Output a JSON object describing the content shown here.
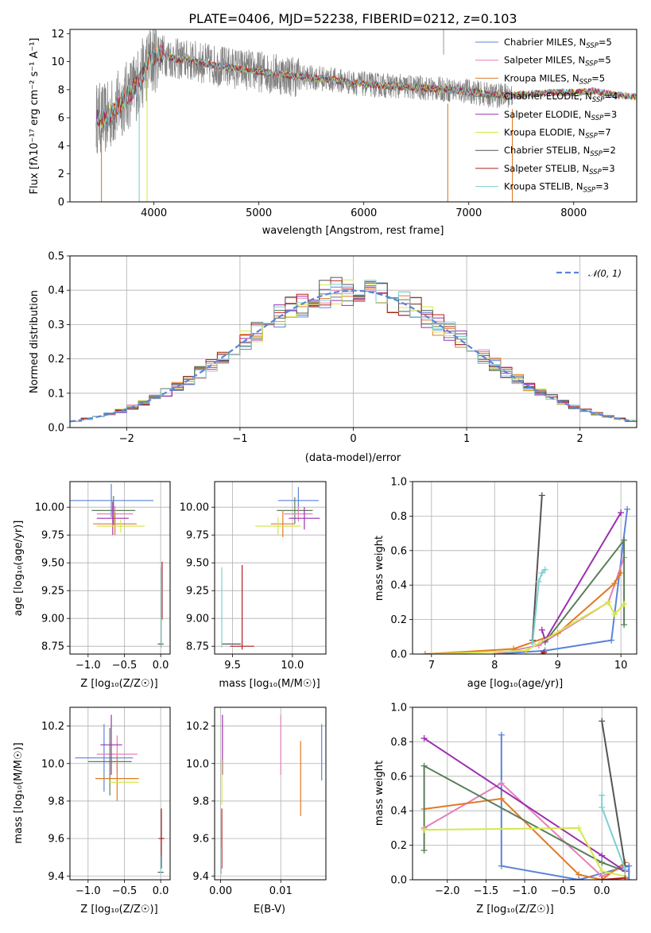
{
  "colors": {
    "chabrier_miles": "#5b84d8",
    "salpeter_miles": "#e67fb8",
    "kroupa_miles": "#e07a24",
    "chabrier_elodie": "#5a7f5a",
    "salpeter_elodie": "#9c2fb0",
    "kroupa_elodie": "#d4e84a",
    "chabrier_stelib": "#555555",
    "salpeter_stelib": "#b51f1f",
    "kroupa_stelib": "#7fcfcf",
    "spectrum": "#808080",
    "normal_curve": "#5b84d8"
  },
  "chart_data": [
    {
      "id": "spectrum",
      "type": "line",
      "title": "PLATE=0406, MJD=52238, FIBERID=0212, z=0.103",
      "xlabel": "wavelength [Angstrom, rest frame]",
      "ylabel": "Flux [fλ10⁻¹⁷ erg cm⁻² s⁻¹ A⁻¹]",
      "xlim": [
        3200,
        8600
      ],
      "ylim": [
        0,
        12.3
      ],
      "xticks": [
        "4000",
        "5000",
        "6000",
        "7000",
        "8000"
      ],
      "xtick_values": [
        4000,
        5000,
        6000,
        7000,
        8000
      ],
      "yticks": [
        "0",
        "2",
        "4",
        "6",
        "8",
        "10",
        "12"
      ],
      "ytick_values": [
        0,
        2,
        4,
        6,
        8,
        10,
        12
      ],
      "legend_position": "top-right",
      "legend": [
        {
          "key": "chabrier_miles",
          "label": "Chabrier MILES, N",
          "sub": "SSP",
          "suffix": "=5"
        },
        {
          "key": "salpeter_miles",
          "label": "Salpeter MILES, N",
          "sub": "SSP",
          "suffix": "=5"
        },
        {
          "key": "kroupa_miles",
          "label": "Kroupa MILES, N",
          "sub": "SSP",
          "suffix": "=5"
        },
        {
          "key": "chabrier_elodie",
          "label": "Chabrier ELODIE, N",
          "sub": "SSP",
          "suffix": "=4"
        },
        {
          "key": "salpeter_elodie",
          "label": "Salpeter ELODIE, N",
          "sub": "SSP",
          "suffix": "=3"
        },
        {
          "key": "kroupa_elodie",
          "label": "Kroupa ELODIE, N",
          "sub": "SSP",
          "suffix": "=7"
        },
        {
          "key": "chabrier_stelib",
          "label": "Chabrier STELIB, N",
          "sub": "SSP",
          "suffix": "=2"
        },
        {
          "key": "salpeter_stelib",
          "label": "Salpeter STELIB, N",
          "sub": "SSP",
          "suffix": "=3"
        },
        {
          "key": "kroupa_stelib",
          "label": "Kroupa STELIB, N",
          "sub": "SSP",
          "suffix": "=3"
        }
      ],
      "continuum": {
        "x": [
          3450,
          3550,
          3650,
          3750,
          3850,
          3950,
          4050,
          4200,
          4400,
          4600,
          4800,
          5000,
          5200,
          5400,
          5600,
          5800,
          6000,
          6200,
          6400,
          6600,
          6800,
          7000,
          7200,
          7400,
          7600,
          7800,
          8000,
          8200,
          8400,
          8600
        ],
        "y": [
          6.0,
          5.9,
          6.8,
          7.6,
          8.5,
          10.0,
          10.6,
          10.2,
          10.0,
          9.7,
          9.5,
          9.3,
          9.1,
          8.9,
          8.8,
          8.6,
          8.4,
          8.3,
          8.2,
          8.1,
          8.0,
          7.9,
          7.6,
          7.6,
          7.7,
          7.8,
          7.8,
          7.9,
          7.6,
          7.5
        ]
      },
      "dips": [
        {
          "series": "kroupa_miles",
          "x": 3500,
          "y": 0
        },
        {
          "series": "kroupa_stelib",
          "x": 3860,
          "y": 0
        },
        {
          "series": "kroupa_elodie",
          "x": 3935,
          "y": 0
        },
        {
          "series": "kroupa_miles",
          "x": 6800,
          "y": 0
        },
        {
          "series": "kroupa_miles",
          "x": 7415,
          "y": 0
        }
      ]
    },
    {
      "id": "residuals",
      "type": "line",
      "xlabel": "(data-model)/error",
      "ylabel": "Normed distribution",
      "xlim": [
        -2.5,
        2.5
      ],
      "ylim": [
        0,
        0.5
      ],
      "xticks": [
        "−2",
        "−1",
        "0",
        "1",
        "2"
      ],
      "xtick_values": [
        -2,
        -1,
        0,
        1,
        2
      ],
      "yticks": [
        "0.0",
        "0.1",
        "0.2",
        "0.3",
        "0.4",
        "0.5"
      ],
      "ytick_values": [
        0,
        0.1,
        0.2,
        0.3,
        0.4,
        0.5
      ],
      "legend_position": "top-right",
      "legend_label": "𝒩(0, 1)",
      "bin_width": 0.1
    },
    {
      "id": "age_vs_Z",
      "type": "scatter",
      "xlabel": "Z [log₁₀(Z/Z☉)]",
      "ylabel": "age  [log₁₀(age/yr)]",
      "xlim": [
        -1.25,
        0.13
      ],
      "ylim": [
        8.68,
        10.23
      ],
      "xticks": [
        "−1.0",
        "−0.5",
        "0.0"
      ],
      "xtick_values": [
        -1.0,
        -0.5,
        0.0
      ],
      "yticks": [
        "8.75",
        "9.00",
        "9.25",
        "9.50",
        "9.75",
        "10.00"
      ],
      "ytick_values": [
        8.75,
        9.0,
        9.25,
        9.5,
        9.75,
        10.0
      ],
      "points": [
        {
          "s": "chabrier_miles",
          "x": -0.68,
          "y": 10.06,
          "xe": 0.58,
          "ye": 0.15
        },
        {
          "s": "chabrier_elodie",
          "x": -0.65,
          "y": 9.97,
          "xe": 0.3,
          "ye": 0.13
        },
        {
          "s": "salpeter_miles",
          "x": -0.63,
          "y": 9.94,
          "xe": 0.25,
          "ye": 0.07
        },
        {
          "s": "salpeter_elodie",
          "x": -0.66,
          "y": 9.9,
          "xe": 0.22,
          "ye": 0.15
        },
        {
          "s": "kroupa_miles",
          "x": -0.63,
          "y": 9.85,
          "xe": 0.3,
          "ye": 0.1
        },
        {
          "s": "kroupa_elodie",
          "x": -0.55,
          "y": 9.83,
          "xe": 0.33,
          "ye": 0.06
        },
        {
          "s": "salpeter_stelib",
          "x": 0.02,
          "y": 9.25,
          "xe": 0.0,
          "ye": 0.26
        },
        {
          "s": "chabrier_stelib",
          "x": 0.0,
          "y": 8.77,
          "xe": 0.04,
          "ye": 0.0
        },
        {
          "s": "kroupa_stelib",
          "x": 0.01,
          "y": 9.1,
          "xe": 0.0,
          "ye": 0.36
        }
      ]
    },
    {
      "id": "age_vs_mass",
      "type": "scatter",
      "xlabel": "mass [log₁₀(M/M☉)]",
      "ylabel": "",
      "xlim": [
        9.35,
        10.28
      ],
      "ylim": [
        8.68,
        10.23
      ],
      "xticks": [
        "9.5",
        "10.0"
      ],
      "xtick_values": [
        9.5,
        10.0
      ],
      "yticks": [
        "8.75",
        "9.00",
        "9.25",
        "9.50",
        "9.75",
        "10.00"
      ],
      "ytick_values": [
        8.75,
        9.0,
        9.25,
        9.5,
        9.75,
        10.0
      ],
      "points": [
        {
          "s": "chabrier_miles",
          "x": 10.05,
          "y": 10.06,
          "xe": 0.17,
          "ye": 0.12
        },
        {
          "s": "chabrier_elodie",
          "x": 10.02,
          "y": 9.97,
          "xe": 0.15,
          "ye": 0.12
        },
        {
          "s": "salpeter_miles",
          "x": 10.05,
          "y": 9.94,
          "xe": 0.12,
          "ye": 0.07
        },
        {
          "s": "salpeter_elodie",
          "x": 10.1,
          "y": 9.9,
          "xe": 0.13,
          "ye": 0.1
        },
        {
          "s": "kroupa_miles",
          "x": 9.92,
          "y": 9.85,
          "xe": 0.1,
          "ye": 0.12
        },
        {
          "s": "kroupa_elodie",
          "x": 9.88,
          "y": 9.83,
          "xe": 0.19,
          "ye": 0.08
        },
        {
          "s": "chabrier_stelib",
          "x": 9.49,
          "y": 8.77,
          "xe": 0.08,
          "ye": 0.0
        },
        {
          "s": "salpeter_stelib",
          "x": 9.58,
          "y": 8.75,
          "xe": 0.1,
          "ye": 0.0
        },
        {
          "s": "kroupa_stelib",
          "x": 9.41,
          "y": 9.1,
          "xe": 0.0,
          "ye": 0.36
        },
        {
          "s": "salpeter_stelib",
          "x": 9.58,
          "y": 9.1,
          "xe": 0.0,
          "ye": 0.38
        }
      ]
    },
    {
      "id": "mass_weight_vs_age",
      "type": "line",
      "xlabel": "age  [log₁₀(age/yr)]",
      "ylabel": "mass weight",
      "xlim": [
        6.7,
        10.25
      ],
      "ylim": [
        0,
        1.0
      ],
      "xticks": [
        "7",
        "8",
        "9",
        "10"
      ],
      "xtick_values": [
        7,
        8,
        9,
        10
      ],
      "yticks": [
        "0.0",
        "0.2",
        "0.4",
        "0.6",
        "0.8",
        "1.0"
      ],
      "ytick_values": [
        0,
        0.2,
        0.4,
        0.6,
        0.8,
        1.0
      ],
      "series": [
        {
          "s": "chabrier_miles",
          "x": [
            8.0,
            8.8,
            9.85,
            10.1
          ],
          "y": [
            0.0,
            0.02,
            0.08,
            0.84
          ]
        },
        {
          "s": "salpeter_miles",
          "x": [
            8.0,
            8.7,
            9.8,
            10.05
          ],
          "y": [
            0.0,
            0.05,
            0.3,
            0.56
          ]
        },
        {
          "s": "kroupa_miles",
          "x": [
            6.9,
            8.3,
            9.0,
            9.9,
            10.0
          ],
          "y": [
            0.0,
            0.03,
            0.12,
            0.41,
            0.47
          ]
        },
        {
          "s": "chabrier_elodie",
          "x": [
            8.8,
            10.05,
            10.05
          ],
          "y": [
            0.07,
            0.66,
            0.17
          ]
        },
        {
          "s": "salpeter_elodie",
          "x": [
            8.75,
            8.8,
            10.0
          ],
          "y": [
            0.14,
            0.08,
            0.82
          ]
        },
        {
          "s": "kroupa_elodie",
          "x": [
            7.0,
            8.5,
            9.8,
            9.9,
            10.05
          ],
          "y": [
            0.0,
            0.02,
            0.3,
            0.23,
            0.29
          ]
        },
        {
          "s": "chabrier_stelib",
          "x": [
            8.6,
            8.75
          ],
          "y": [
            0.08,
            0.92
          ]
        },
        {
          "s": "salpeter_stelib",
          "x": [
            8.75,
            8.78
          ],
          "y": [
            0.0,
            0.01
          ]
        },
        {
          "s": "kroupa_stelib",
          "x": [
            8.6,
            8.7,
            8.75,
            8.8
          ],
          "y": [
            0.06,
            0.42,
            0.47,
            0.49
          ]
        }
      ]
    },
    {
      "id": "mass_vs_Z",
      "type": "scatter",
      "xlabel": "Z [log₁₀(Z/Z☉)]",
      "ylabel": "mass [log₁₀(M/M☉)]",
      "xlim": [
        -1.25,
        0.13
      ],
      "ylim": [
        9.38,
        10.3
      ],
      "xticks": [
        "−1.0",
        "−0.5",
        "0.0"
      ],
      "xtick_values": [
        -1.0,
        -0.5,
        0.0
      ],
      "yticks": [
        "9.4",
        "9.6",
        "9.8",
        "10.0",
        "10.2"
      ],
      "ytick_values": [
        9.4,
        9.6,
        9.8,
        10.0,
        10.2
      ],
      "points": [
        {
          "s": "chabrier_miles",
          "x": -0.78,
          "y": 10.03,
          "xe": 0.4,
          "ye": 0.18
        },
        {
          "s": "salpeter_miles",
          "x": -0.6,
          "y": 10.05,
          "xe": 0.28,
          "ye": 0.1
        },
        {
          "s": "salpeter_elodie",
          "x": -0.68,
          "y": 10.1,
          "xe": 0.15,
          "ye": 0.16
        },
        {
          "s": "chabrier_elodie",
          "x": -0.7,
          "y": 10.01,
          "xe": 0.3,
          "ye": 0.18
        },
        {
          "s": "kroupa_miles",
          "x": -0.6,
          "y": 9.92,
          "xe": 0.3,
          "ye": 0.12
        },
        {
          "s": "kroupa_elodie",
          "x": -0.5,
          "y": 9.9,
          "xe": 0.2,
          "ye": 0.0
        },
        {
          "s": "salpeter_stelib",
          "x": 0.01,
          "y": 9.6,
          "xe": 0.04,
          "ye": 0.16
        },
        {
          "s": "chabrier_stelib",
          "x": 0.0,
          "y": 9.42,
          "xe": 0.04,
          "ye": 0.0
        },
        {
          "s": "kroupa_stelib",
          "x": 0.0,
          "y": 9.46,
          "xe": 0.0,
          "ye": 0.05
        }
      ]
    },
    {
      "id": "mass_vs_ebv",
      "type": "scatter",
      "xlabel": "E(B-V)",
      "ylabel": "",
      "xlim": [
        -0.001,
        0.0175
      ],
      "ylim": [
        9.38,
        10.3
      ],
      "xticks": [
        "0.00",
        "0.01"
      ],
      "xtick_values": [
        0.0,
        0.01
      ],
      "yticks": [
        "9.4",
        "9.6",
        "9.8",
        "10.0",
        "10.2"
      ],
      "ytick_values": [
        9.4,
        9.6,
        9.8,
        10.0,
        10.2
      ],
      "points": [
        {
          "s": "salpeter_elodie",
          "x": 0.0003,
          "y": 10.1,
          "xe": 0.0,
          "ye": 0.16
        },
        {
          "s": "kroupa_elodie",
          "x": 0.0002,
          "y": 9.9,
          "xe": 0.0,
          "ye": 0.12
        },
        {
          "s": "salpeter_stelib",
          "x": 0.0002,
          "y": 9.6,
          "xe": 0.0,
          "ye": 0.16
        },
        {
          "s": "kroupa_stelib",
          "x": 0.0001,
          "y": 9.48,
          "xe": 0.0,
          "ye": 0.07
        },
        {
          "s": "salpeter_miles",
          "x": 0.01,
          "y": 10.1,
          "xe": 0.0,
          "ye": 0.16
        },
        {
          "s": "kroupa_miles",
          "x": 0.0133,
          "y": 9.92,
          "xe": 0.0,
          "ye": 0.2
        },
        {
          "s": "chabrier_miles",
          "x": 0.0168,
          "y": 10.06,
          "xe": 0.0,
          "ye": 0.15
        }
      ]
    },
    {
      "id": "mass_weight_vs_Z",
      "type": "line",
      "xlabel": "Z [log₁₀(Z/Z☉)]",
      "ylabel": "mass weight",
      "xlim": [
        -2.45,
        0.45
      ],
      "ylim": [
        0,
        1.0
      ],
      "xticks": [
        "−2.0",
        "−1.5",
        "−1.0",
        "−0.5",
        "0.0"
      ],
      "xtick_values": [
        -2.0,
        -1.5,
        -1.0,
        -0.5,
        0.0
      ],
      "yticks": [
        "0.0",
        "0.2",
        "0.4",
        "0.6",
        "0.8",
        "1.0"
      ],
      "ytick_values": [
        0,
        0.2,
        0.4,
        0.6,
        0.8,
        1.0
      ],
      "series": [
        {
          "s": "chabrier_miles",
          "x": [
            -1.3,
            -1.3,
            -0.3,
            0.35,
            0.35
          ],
          "y": [
            0.84,
            0.08,
            0.0,
            0.08,
            0.0
          ]
        },
        {
          "s": "salpeter_miles",
          "x": [
            -2.3,
            -1.3,
            0.0,
            0.3
          ],
          "y": [
            0.3,
            0.56,
            0.02,
            0.08
          ]
        },
        {
          "s": "kroupa_miles",
          "x": [
            -2.3,
            -1.3,
            -0.3,
            0.0,
            0.3
          ],
          "y": [
            0.41,
            0.47,
            0.03,
            0.0,
            0.1
          ]
        },
        {
          "s": "chabrier_elodie",
          "x": [
            -2.3,
            -2.3,
            0.0,
            0.3
          ],
          "y": [
            0.17,
            0.66,
            0.1,
            0.05
          ]
        },
        {
          "s": "salpeter_elodie",
          "x": [
            -2.3,
            0.0,
            0.3
          ],
          "y": [
            0.82,
            0.14,
            0.05
          ]
        },
        {
          "s": "kroupa_elodie",
          "x": [
            -2.3,
            -0.3,
            0.0,
            0.3
          ],
          "y": [
            0.29,
            0.3,
            0.05,
            0.02
          ]
        },
        {
          "s": "chabrier_stelib",
          "x": [
            0.0,
            0.3
          ],
          "y": [
            0.92,
            0.08
          ]
        },
        {
          "s": "salpeter_stelib",
          "x": [
            0.0,
            0.3
          ],
          "y": [
            0.0,
            0.01
          ]
        },
        {
          "s": "kroupa_stelib",
          "x": [
            0.0,
            0.0,
            0.3
          ],
          "y": [
            0.49,
            0.42,
            0.06
          ]
        }
      ]
    }
  ]
}
